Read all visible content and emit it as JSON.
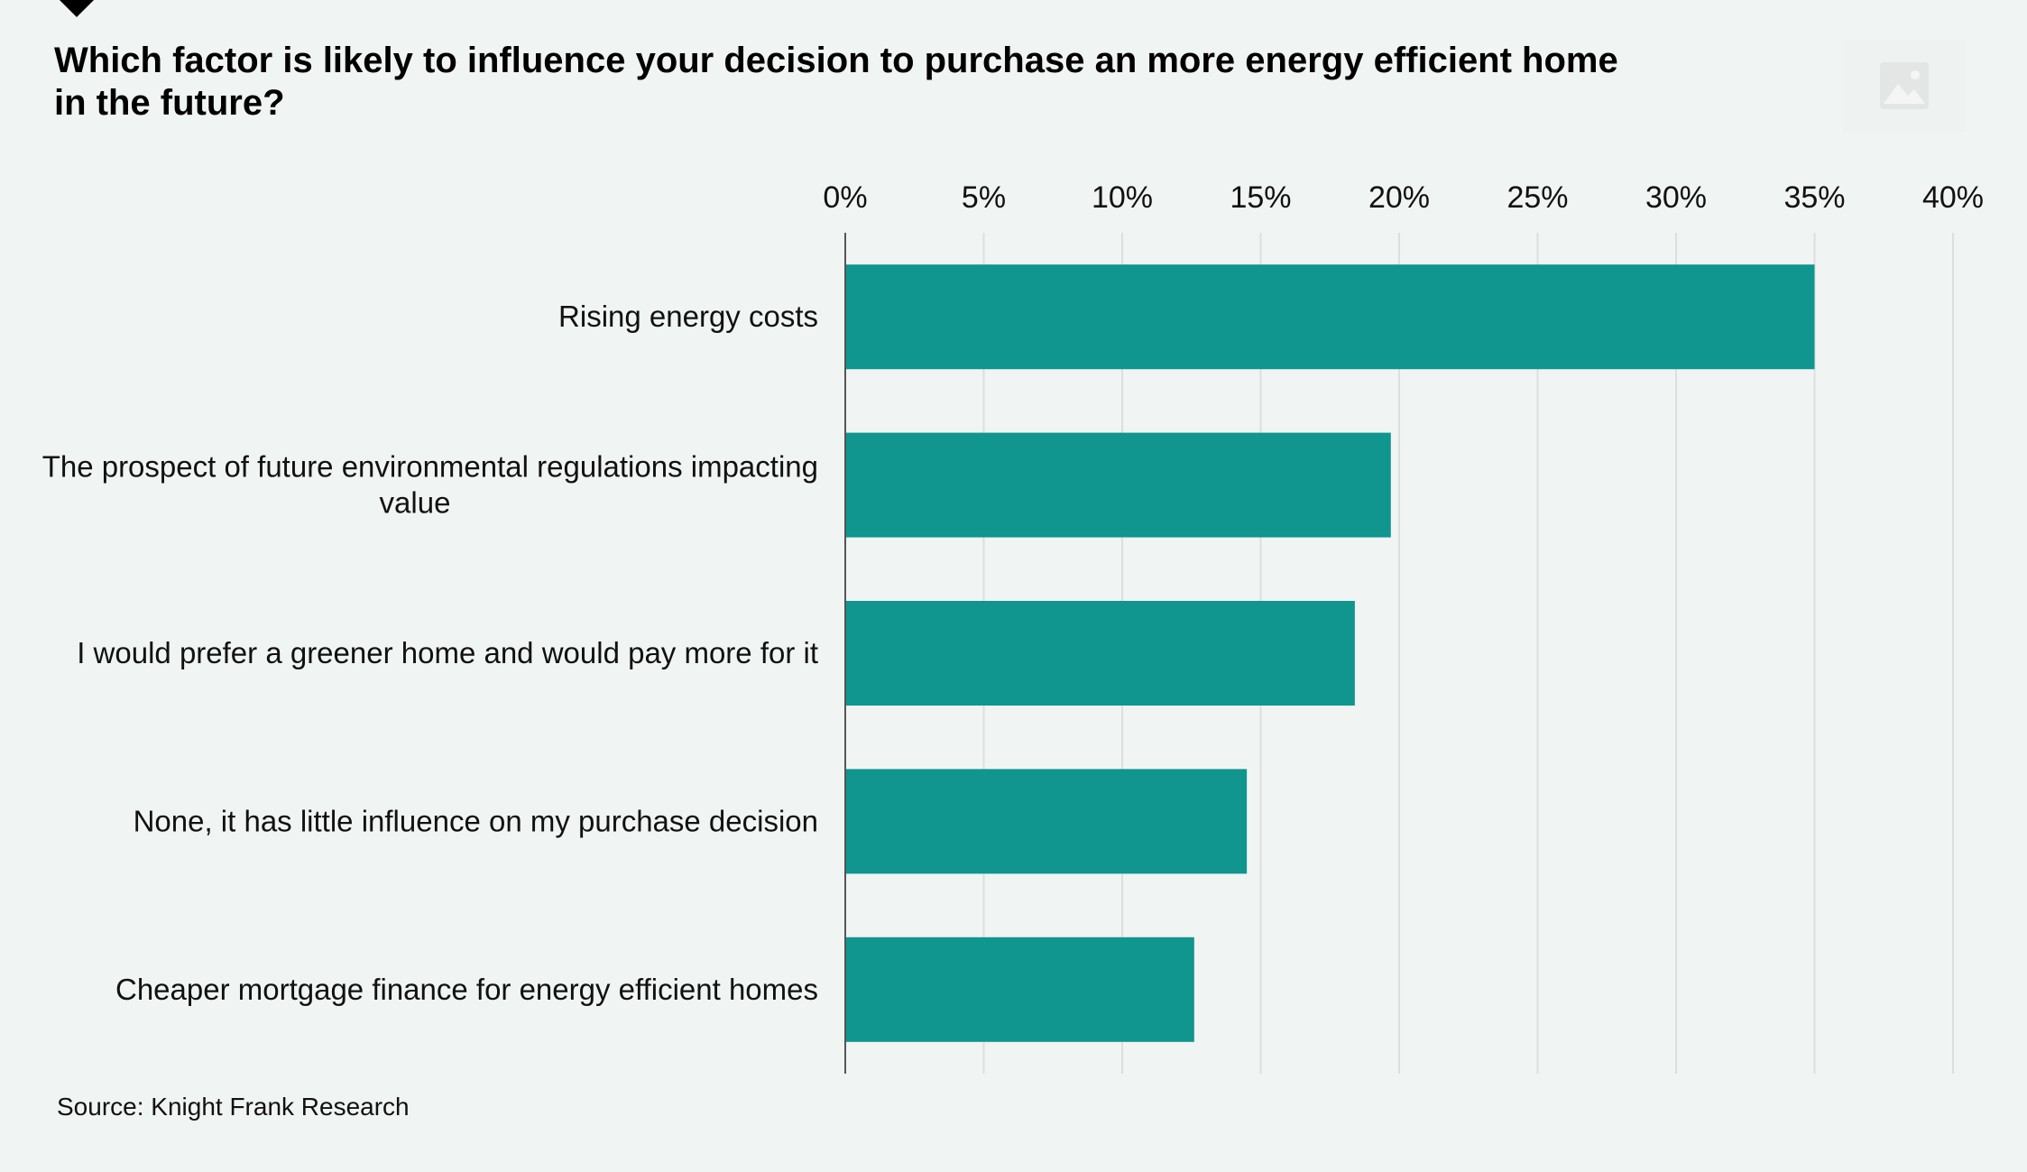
{
  "title": "Which factor is likely to influence your decision to purchase an more energy efficient home in the future?",
  "source": "Source: Knight Frank Research",
  "colors": {
    "bar": "#10958f",
    "background": "#f0f4f3",
    "grid": "#dcdfde",
    "axis": "#555555"
  },
  "logo_icon": "image-placeholder-icon",
  "chart_data": {
    "type": "bar",
    "orientation": "horizontal",
    "title": "Which factor is likely to influence your decision to purchase an more energy efficient home in the future?",
    "categories": [
      [
        "Rising energy costs"
      ],
      [
        "The prospect of future environmental regulations impacting",
        "value"
      ],
      [
        "I would prefer a greener home and would pay more for it"
      ],
      [
        "None, it has little influence on my purchase decision"
      ],
      [
        "Cheaper mortgage finance for energy efficient homes"
      ]
    ],
    "values": [
      35,
      19.7,
      18.4,
      14.5,
      12.6
    ],
    "xlim": [
      0,
      40
    ],
    "x_ticks": [
      0,
      5,
      10,
      15,
      20,
      25,
      30,
      35,
      40
    ],
    "x_tick_labels": [
      "0%",
      "5%",
      "10%",
      "15%",
      "20%",
      "25%",
      "30%",
      "35%",
      "40%"
    ],
    "x_axis_position": "top",
    "grid": true,
    "legend": "none"
  }
}
